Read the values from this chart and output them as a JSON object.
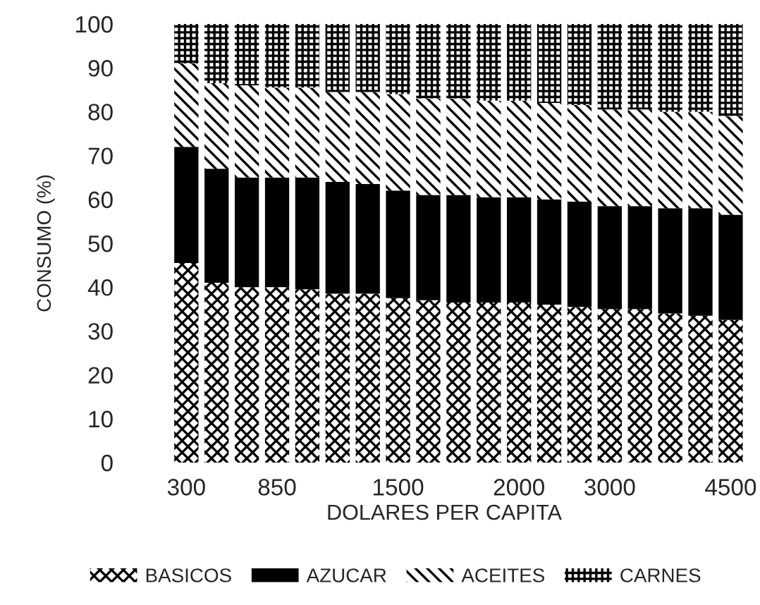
{
  "chart_data": {
    "type": "bar",
    "stacked": true,
    "xlabel": "DOLARES PER CAPITA",
    "ylabel": "CONSUMO (%)",
    "categories": [
      "300",
      null,
      null,
      "850",
      null,
      null,
      null,
      "1500",
      null,
      null,
      null,
      "2000",
      null,
      null,
      "3000",
      null,
      null,
      null,
      "4500"
    ],
    "series": [
      {
        "name": "BASICOS",
        "color": "#000000",
        "values": [
          45.5,
          41,
          40,
          40,
          39.5,
          38.5,
          38.5,
          37.5,
          37,
          36.5,
          36.5,
          36.5,
          36,
          35.5,
          35,
          35,
          34,
          33.5,
          32.5
        ]
      },
      {
        "name": "AZUCAR",
        "color": "#000000",
        "values": [
          26.5,
          26,
          25,
          25,
          25.5,
          25.5,
          25,
          24.5,
          24,
          24.5,
          24,
          24,
          24,
          24,
          23.5,
          23.5,
          24,
          24.5,
          24
        ]
      },
      {
        "name": "ACEITES",
        "color": "#000000",
        "values": [
          19,
          19.5,
          21,
          20.5,
          20.5,
          20.5,
          21,
          22,
          22,
          22,
          22,
          22,
          22,
          22,
          22,
          22,
          22,
          22,
          22.5
        ]
      },
      {
        "name": "CARNES",
        "color": "#000000",
        "values": [
          9,
          13.5,
          14,
          14.5,
          14.5,
          15.5,
          15.5,
          16,
          17,
          17,
          17.5,
          17.5,
          18,
          18.5,
          19.5,
          19.5,
          20,
          20,
          21
        ]
      }
    ],
    "ylim": [
      0,
      100
    ],
    "yticks": [
      0,
      10,
      20,
      30,
      40,
      50,
      60,
      70,
      80,
      90,
      100
    ],
    "grid": false,
    "legend": "bottom"
  }
}
